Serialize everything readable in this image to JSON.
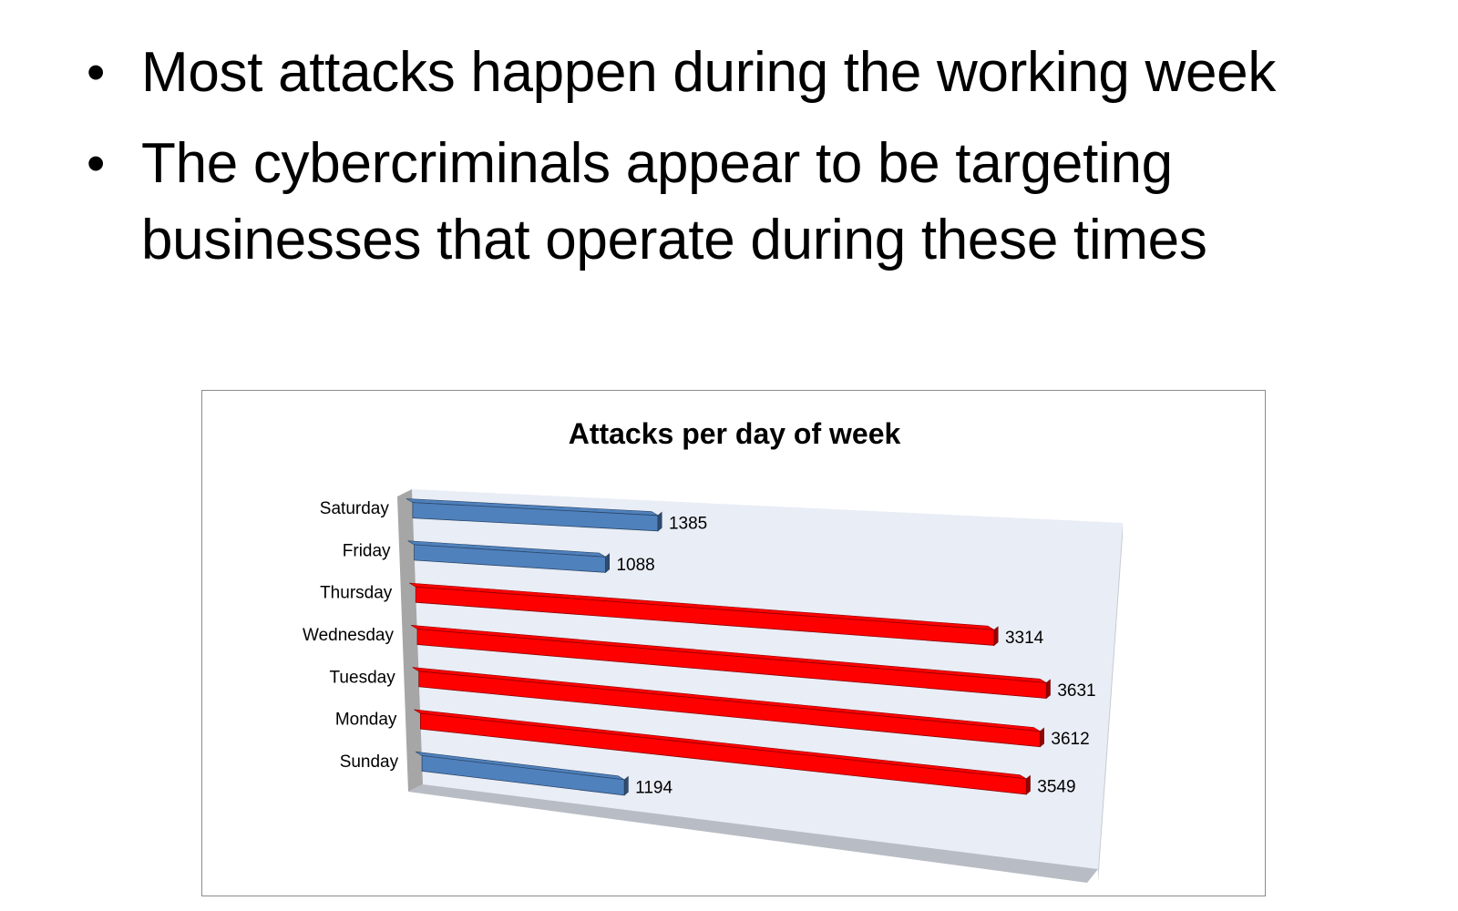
{
  "slide": {
    "bullets": [
      "Most attacks happen during the working week",
      "The cybercriminals appear to be targeting businesses that operate during these times"
    ]
  },
  "chart_data": {
    "type": "bar",
    "orientation": "horizontal",
    "style": "3d",
    "title": "Attacks per day of week",
    "categories": [
      "Sunday",
      "Monday",
      "Tuesday",
      "Wednesday",
      "Thursday",
      "Friday",
      "Saturday"
    ],
    "values": [
      1194,
      3549,
      3612,
      3631,
      3314,
      1088,
      1385
    ],
    "bar_colors": [
      "#4f81bd",
      "#ff0000",
      "#ff0000",
      "#ff0000",
      "#ff0000",
      "#4f81bd",
      "#4f81bd"
    ],
    "data_labels": true,
    "legend": "none",
    "grid": false,
    "xlim": [
      0,
      4000
    ],
    "wall_color": "#e9edf6",
    "floor_color": "#b8bcc4"
  }
}
